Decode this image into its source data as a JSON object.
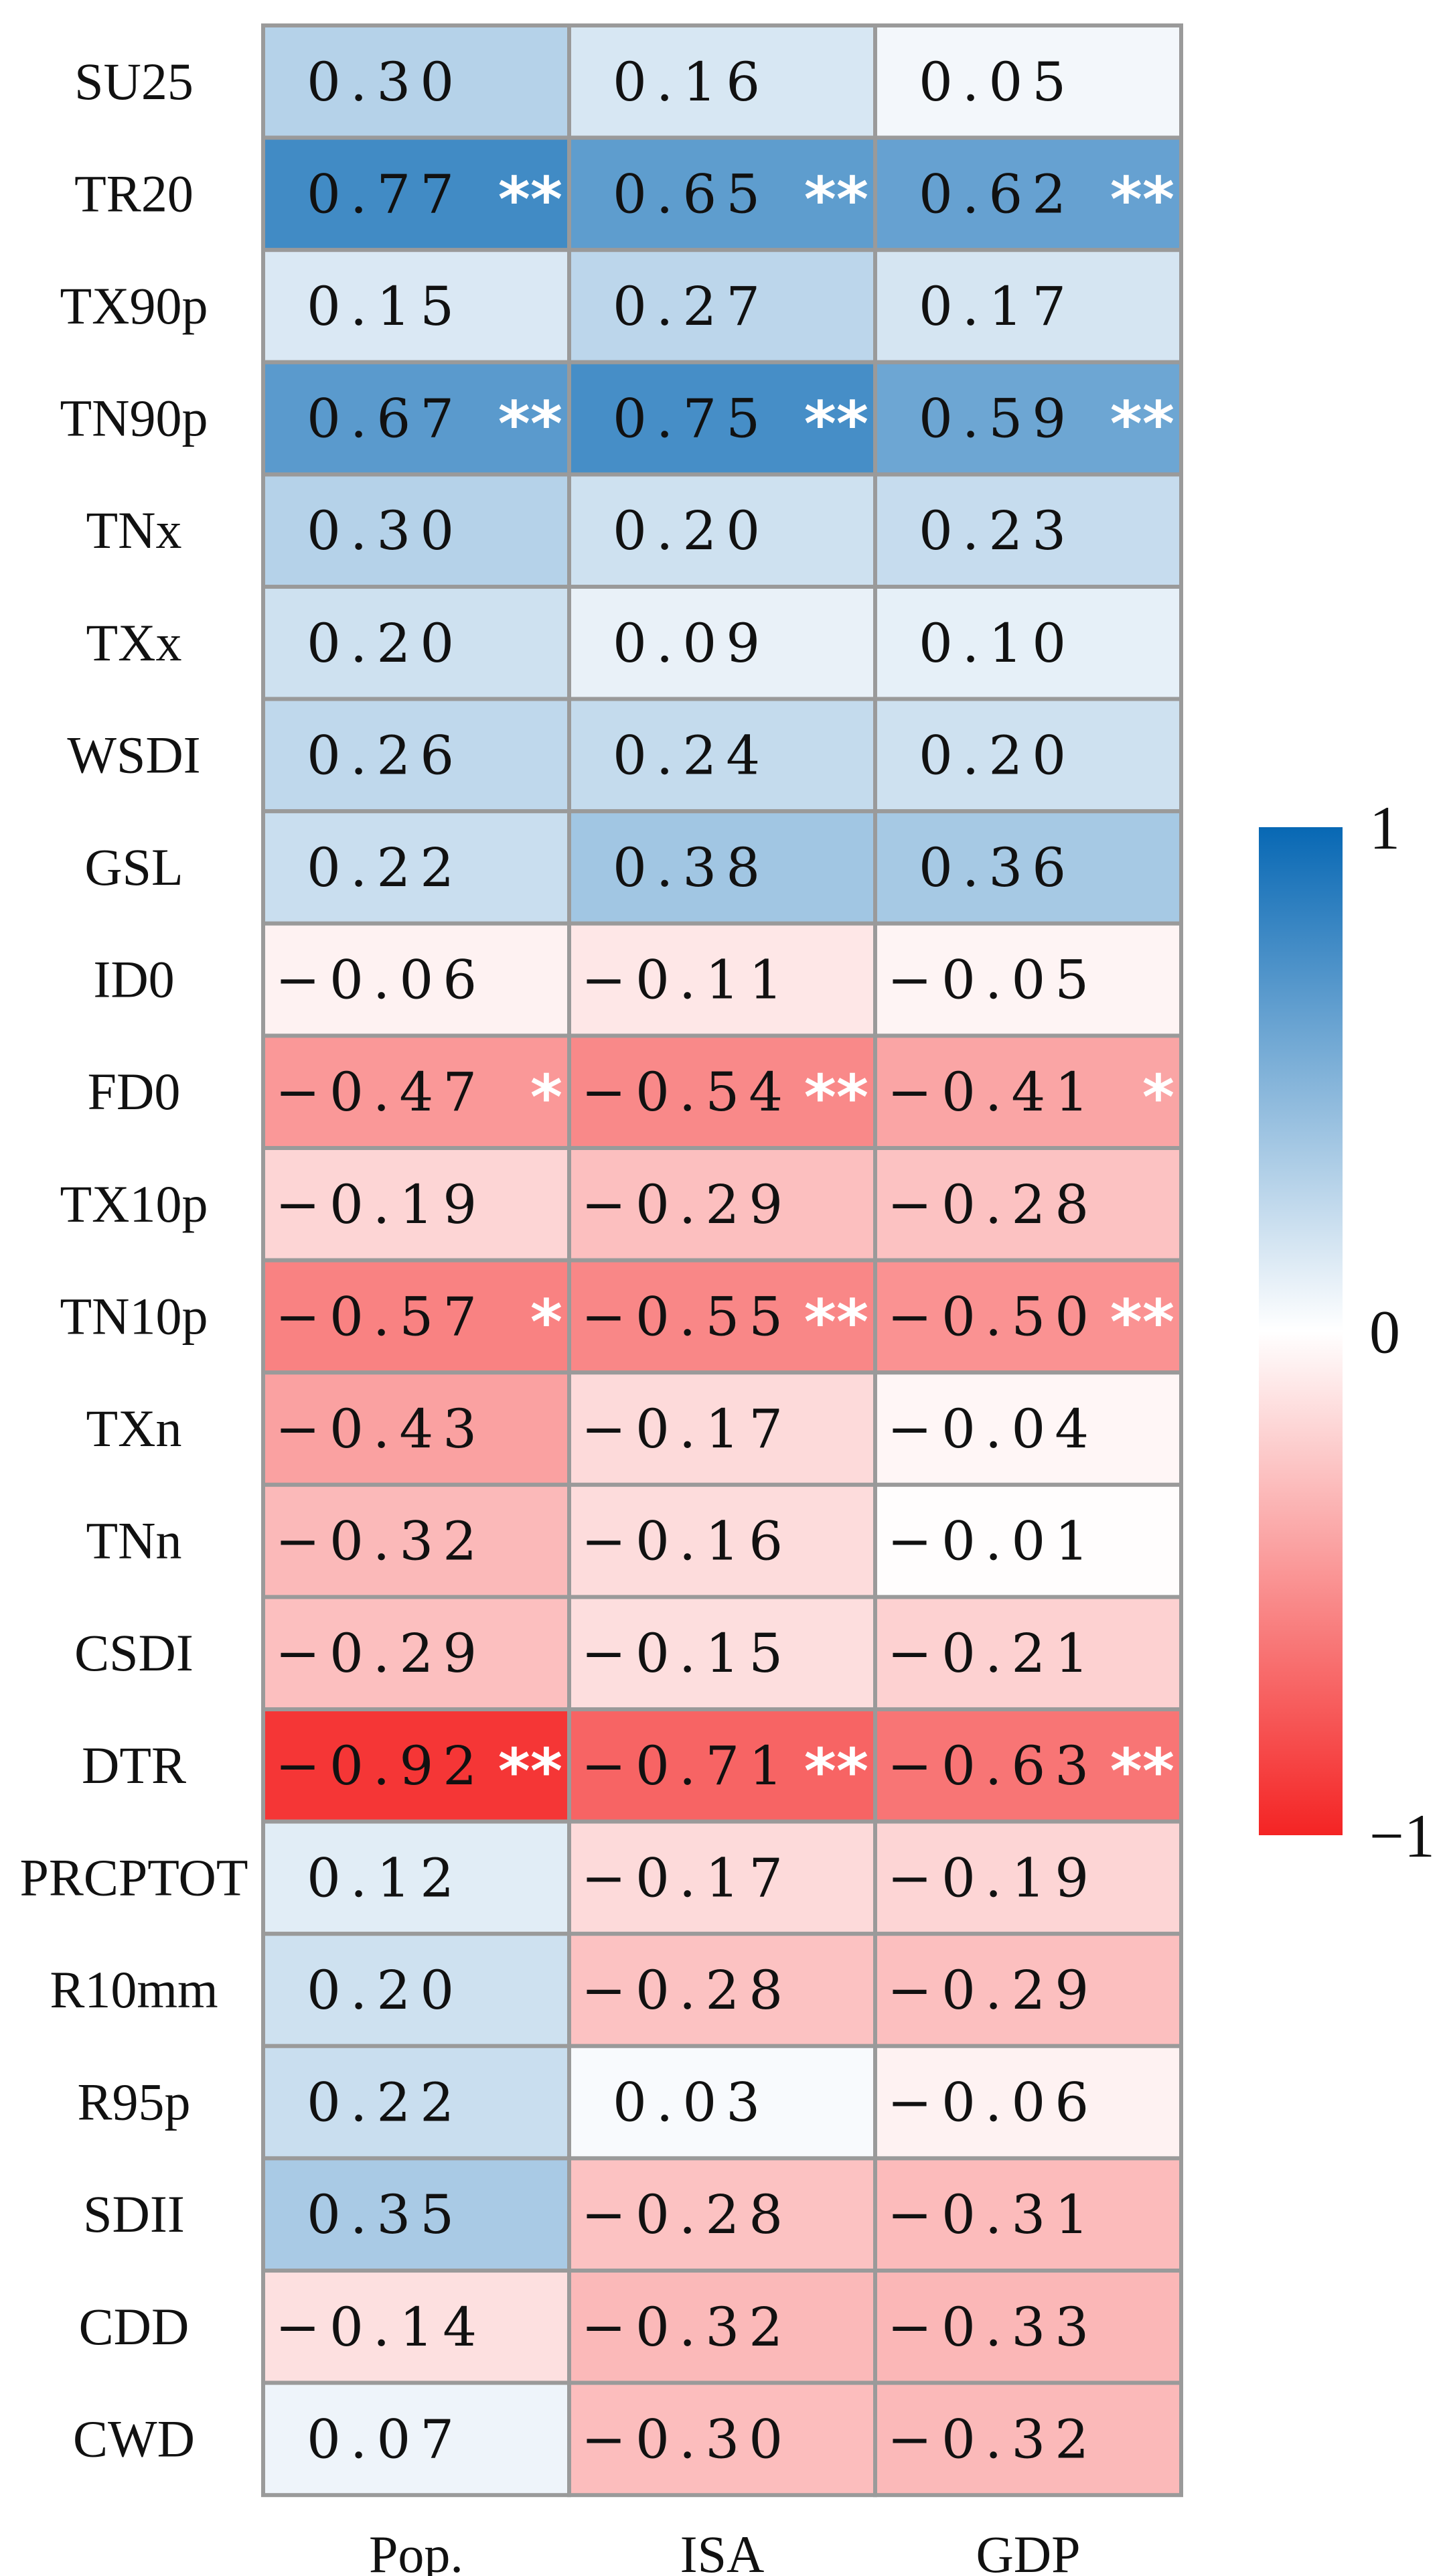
{
  "chart_data": {
    "type": "heatmap",
    "title": "",
    "columns": [
      "Pop.",
      "ISA",
      "GDP"
    ],
    "rows": [
      "SU25",
      "TR20",
      "TX90p",
      "TN90p",
      "TNx",
      "TXx",
      "WSDI",
      "GSL",
      "ID0",
      "FD0",
      "TX10p",
      "TN10p",
      "TXn",
      "TNn",
      "CSDI",
      "DTR",
      "PRCPTOT",
      "R10mm",
      "R95p",
      "SDII",
      "CDD",
      "CWD"
    ],
    "values": [
      [
        0.3,
        0.16,
        0.05
      ],
      [
        0.77,
        0.65,
        0.62
      ],
      [
        0.15,
        0.27,
        0.17
      ],
      [
        0.67,
        0.75,
        0.59
      ],
      [
        0.3,
        0.2,
        0.23
      ],
      [
        0.2,
        0.09,
        0.1
      ],
      [
        0.26,
        0.24,
        0.2
      ],
      [
        0.22,
        0.38,
        0.36
      ],
      [
        -0.06,
        -0.11,
        -0.05
      ],
      [
        -0.47,
        -0.54,
        -0.41
      ],
      [
        -0.19,
        -0.29,
        -0.28
      ],
      [
        -0.57,
        -0.55,
        -0.5
      ],
      [
        -0.43,
        -0.17,
        -0.04
      ],
      [
        -0.32,
        -0.16,
        -0.01
      ],
      [
        -0.29,
        -0.15,
        -0.21
      ],
      [
        -0.92,
        -0.71,
        -0.63
      ],
      [
        0.12,
        -0.17,
        -0.19
      ],
      [
        0.2,
        -0.28,
        -0.29
      ],
      [
        0.22,
        0.03,
        -0.06
      ],
      [
        0.35,
        -0.28,
        -0.31
      ],
      [
        -0.14,
        -0.32,
        -0.33
      ],
      [
        0.07,
        -0.3,
        -0.32
      ]
    ],
    "labels": [
      [
        "0.30",
        "0.16",
        "0.05"
      ],
      [
        "0.77",
        "0.65",
        "0.62"
      ],
      [
        "0.15",
        "0.27",
        "0.17"
      ],
      [
        "0.67",
        "0.75",
        "0.59"
      ],
      [
        "0.30",
        "0.20",
        "0.23"
      ],
      [
        "0.20",
        "0.09",
        "0.10"
      ],
      [
        "0.26",
        "0.24",
        "0.20"
      ],
      [
        "0.22",
        "0.38",
        "0.36"
      ],
      [
        "−0.06",
        "−0.11",
        "−0.05"
      ],
      [
        "−0.47",
        "−0.54",
        "−0.41"
      ],
      [
        "−0.19",
        "−0.29",
        "−0.28"
      ],
      [
        "−0.57",
        "−0.55",
        "−0.50"
      ],
      [
        "−0.43",
        "−0.17",
        "−0.04"
      ],
      [
        "−0.32",
        "−0.16",
        "−0.01"
      ],
      [
        "−0.29",
        "−0.15",
        "−0.21"
      ],
      [
        "−0.92",
        "−0.71",
        "−0.63"
      ],
      [
        "0.12",
        "−0.17",
        "−0.19"
      ],
      [
        "0.20",
        "−0.28",
        "−0.29"
      ],
      [
        "0.22",
        "0.03",
        "−0.06"
      ],
      [
        "0.35",
        "−0.28",
        "−0.31"
      ],
      [
        "−0.14",
        "−0.32",
        "−0.33"
      ],
      [
        "0.07",
        "−0.30",
        "−0.32"
      ]
    ],
    "significance": [
      [
        "",
        "",
        ""
      ],
      [
        "**",
        "**",
        "**"
      ],
      [
        "",
        "",
        ""
      ],
      [
        "**",
        "**",
        "**"
      ],
      [
        "",
        "",
        ""
      ],
      [
        "",
        "",
        ""
      ],
      [
        "",
        "",
        ""
      ],
      [
        "",
        "",
        ""
      ],
      [
        "",
        "",
        ""
      ],
      [
        "*",
        "**",
        "*"
      ],
      [
        "",
        "",
        ""
      ],
      [
        "*",
        "**",
        "**"
      ],
      [
        "",
        "",
        ""
      ],
      [
        "",
        "",
        ""
      ],
      [
        "",
        "",
        ""
      ],
      [
        "**",
        "**",
        "**"
      ],
      [
        "",
        "",
        ""
      ],
      [
        "",
        "",
        ""
      ],
      [
        "",
        "",
        ""
      ],
      [
        "",
        "",
        ""
      ],
      [
        "",
        "",
        ""
      ],
      [
        "",
        "",
        ""
      ]
    ],
    "colorbar": {
      "range": [
        -1,
        1
      ],
      "ticks": [
        {
          "value": 1,
          "label": "1"
        },
        {
          "value": 0,
          "label": "0"
        },
        {
          "value": -1,
          "label": "−1"
        }
      ],
      "colors": {
        "max": "#0868b4",
        "mid": "#ffffff",
        "min": "#f42424"
      },
      "placement": "right"
    },
    "grid_color": "#9a9a9a"
  }
}
